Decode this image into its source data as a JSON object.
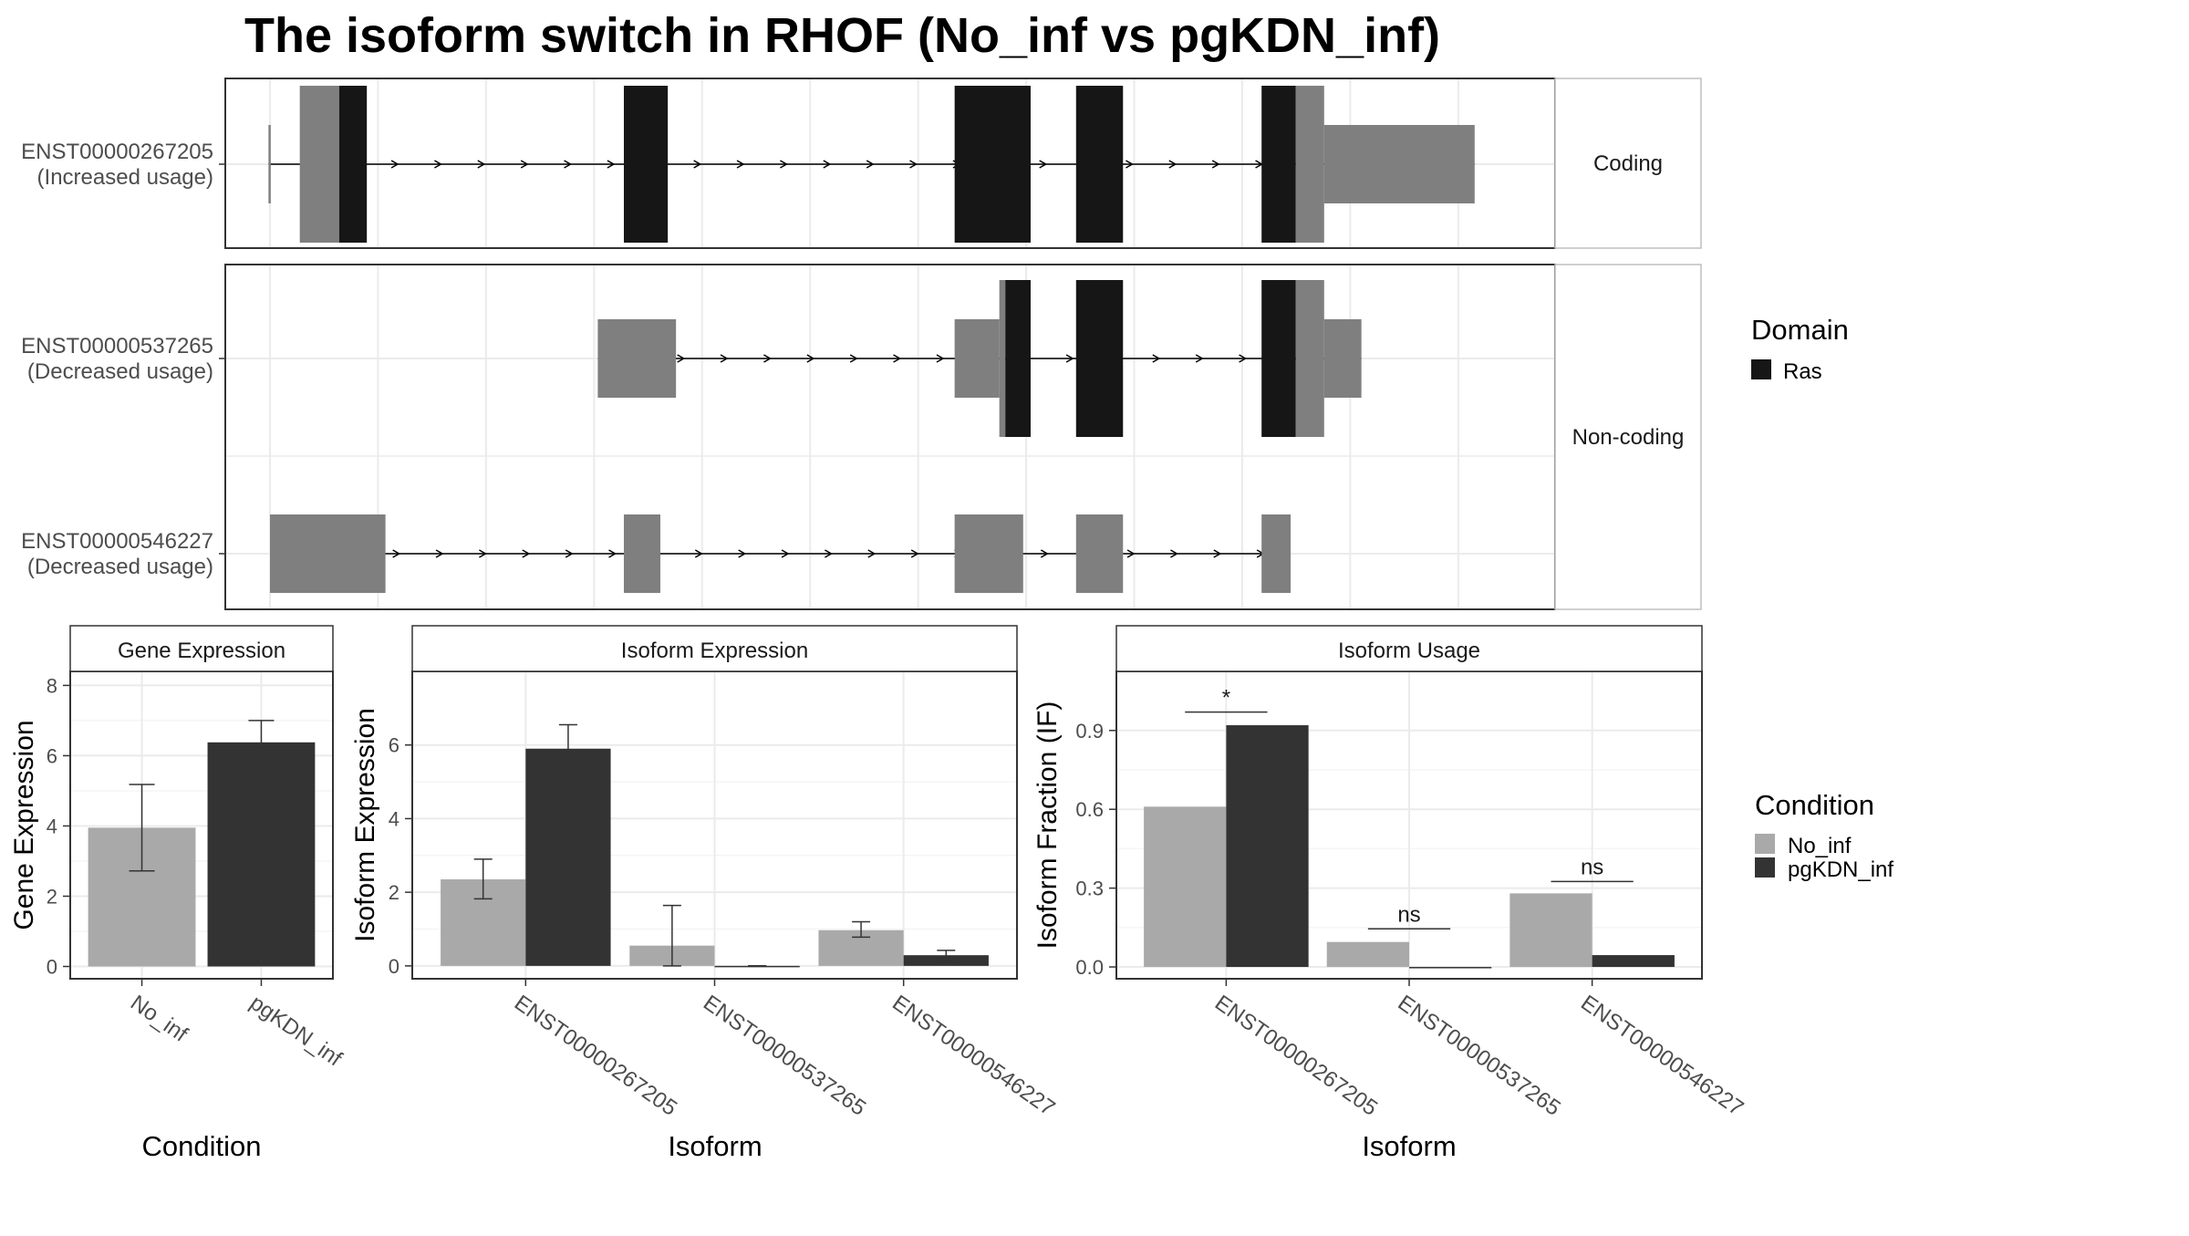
{
  "title": "The isoform switch in RHOF (No_inf vs pgKDN_inf)",
  "colors": {
    "no_inf": "#a9a9a9",
    "pgkdn_inf": "#333333",
    "domain": "#161616",
    "utr": "#7f7f7f",
    "cds_plain": "#7f7f7f"
  },
  "structure": {
    "panels": [
      {
        "label": "Coding",
        "transcripts": [
          {
            "id": "ENST00000267205",
            "usage": "(Increased usage)",
            "exons": [
              [
                0.58,
                0.61
              ],
              [
                1.0,
                1.53
              ],
              [
                1.53,
                1.9
              ],
              [
                1.9,
                2.34
              ],
              [
                5.35,
                5.94
              ],
              [
                9.79,
                10.81
              ],
              [
                11.42,
                12.05
              ],
              [
                13.91,
                14.37
              ],
              [
                14.37,
                14.75
              ],
              [
                14.75,
                16.77
              ]
            ],
            "exon_kind": [
              "utr",
              "cds",
              "domain",
              "intron",
              "domain",
              "domain",
              "domain",
              "domain",
              "cds",
              "utr"
            ]
          }
        ]
      },
      {
        "label": "Non-coding",
        "transcripts": [
          {
            "id": "ENST00000537265",
            "usage": "(Decreased usage)",
            "exons": [
              [
                5.0,
                6.05
              ],
              [
                9.79,
                10.39
              ],
              [
                10.39,
                10.47
              ],
              [
                10.47,
                10.81
              ],
              [
                11.42,
                12.05
              ],
              [
                13.91,
                14.37
              ],
              [
                14.37,
                14.75
              ],
              [
                14.75,
                15.25
              ]
            ],
            "exon_kind": [
              "utr",
              "utr",
              "cds",
              "domain",
              "domain",
              "domain",
              "cds",
              "utr"
            ]
          },
          {
            "id": "ENST00000546227",
            "usage": "(Decreased usage)",
            "exons": [
              [
                0.6,
                2.15
              ],
              [
                5.35,
                5.84
              ],
              [
                9.79,
                10.71
              ],
              [
                11.42,
                12.05
              ],
              [
                13.91,
                14.3
              ]
            ],
            "exon_kind": [
              "utr",
              "utr",
              "utr",
              "utr",
              "utr"
            ]
          }
        ]
      }
    ],
    "x_max": 17.85
  },
  "legends": {
    "domain_title": "Domain",
    "domain_entries": [
      "Ras"
    ],
    "condition_title": "Condition",
    "condition_entries": [
      "No_inf",
      "pgKDN_inf"
    ]
  },
  "chart_data": [
    {
      "type": "bar",
      "strip": "Gene Expression",
      "xlabel": "Condition",
      "ylabel": "Gene Expression",
      "categories": [
        "No_inf",
        "pgKDN_inf"
      ],
      "values": [
        3.95,
        6.38
      ],
      "error_low": [
        2.72,
        5.75
      ],
      "error_high": [
        5.18,
        7.0
      ],
      "ylim": [
        -0.35,
        8.4
      ],
      "yticks": [
        "0",
        "2",
        "4",
        "6",
        "8"
      ]
    },
    {
      "type": "bar",
      "strip": "Isoform Expression",
      "xlabel": "Isoform",
      "ylabel": "Isoform Expression",
      "categories": [
        "ENST00000267205",
        "ENST00000537265",
        "ENST00000546227"
      ],
      "series": [
        {
          "name": "No_inf",
          "values": [
            2.35,
            0.55,
            0.97
          ],
          "error_low": [
            1.82,
            0.0,
            0.78
          ],
          "error_high": [
            2.9,
            1.64,
            1.2
          ]
        },
        {
          "name": "pgKDN_inf",
          "values": [
            5.9,
            0.0,
            0.29
          ],
          "error_low": [
            5.25,
            0.0,
            0.18
          ],
          "error_high": [
            6.55,
            0.0,
            0.42
          ]
        }
      ],
      "ylim": [
        -0.35,
        8.0
      ],
      "yticks": [
        "0",
        "2",
        "4",
        "6"
      ]
    },
    {
      "type": "bar",
      "strip": "Isoform Usage",
      "xlabel": "Isoform",
      "ylabel": "Isoform Fraction (IF)",
      "categories": [
        "ENST00000267205",
        "ENST00000537265",
        "ENST00000546227"
      ],
      "series": [
        {
          "name": "No_inf",
          "values": [
            0.61,
            0.095,
            0.28
          ]
        },
        {
          "name": "pgKDN_inf",
          "values": [
            0.92,
            0.0,
            0.045
          ]
        }
      ],
      "significance": [
        "*",
        "ns",
        "ns"
      ],
      "sig_level": [
        0.97,
        0.145,
        0.325
      ],
      "ylim": [
        -0.045,
        1.125
      ],
      "yticks": [
        "0.0",
        "0.3",
        "0.6",
        "0.9"
      ]
    }
  ]
}
